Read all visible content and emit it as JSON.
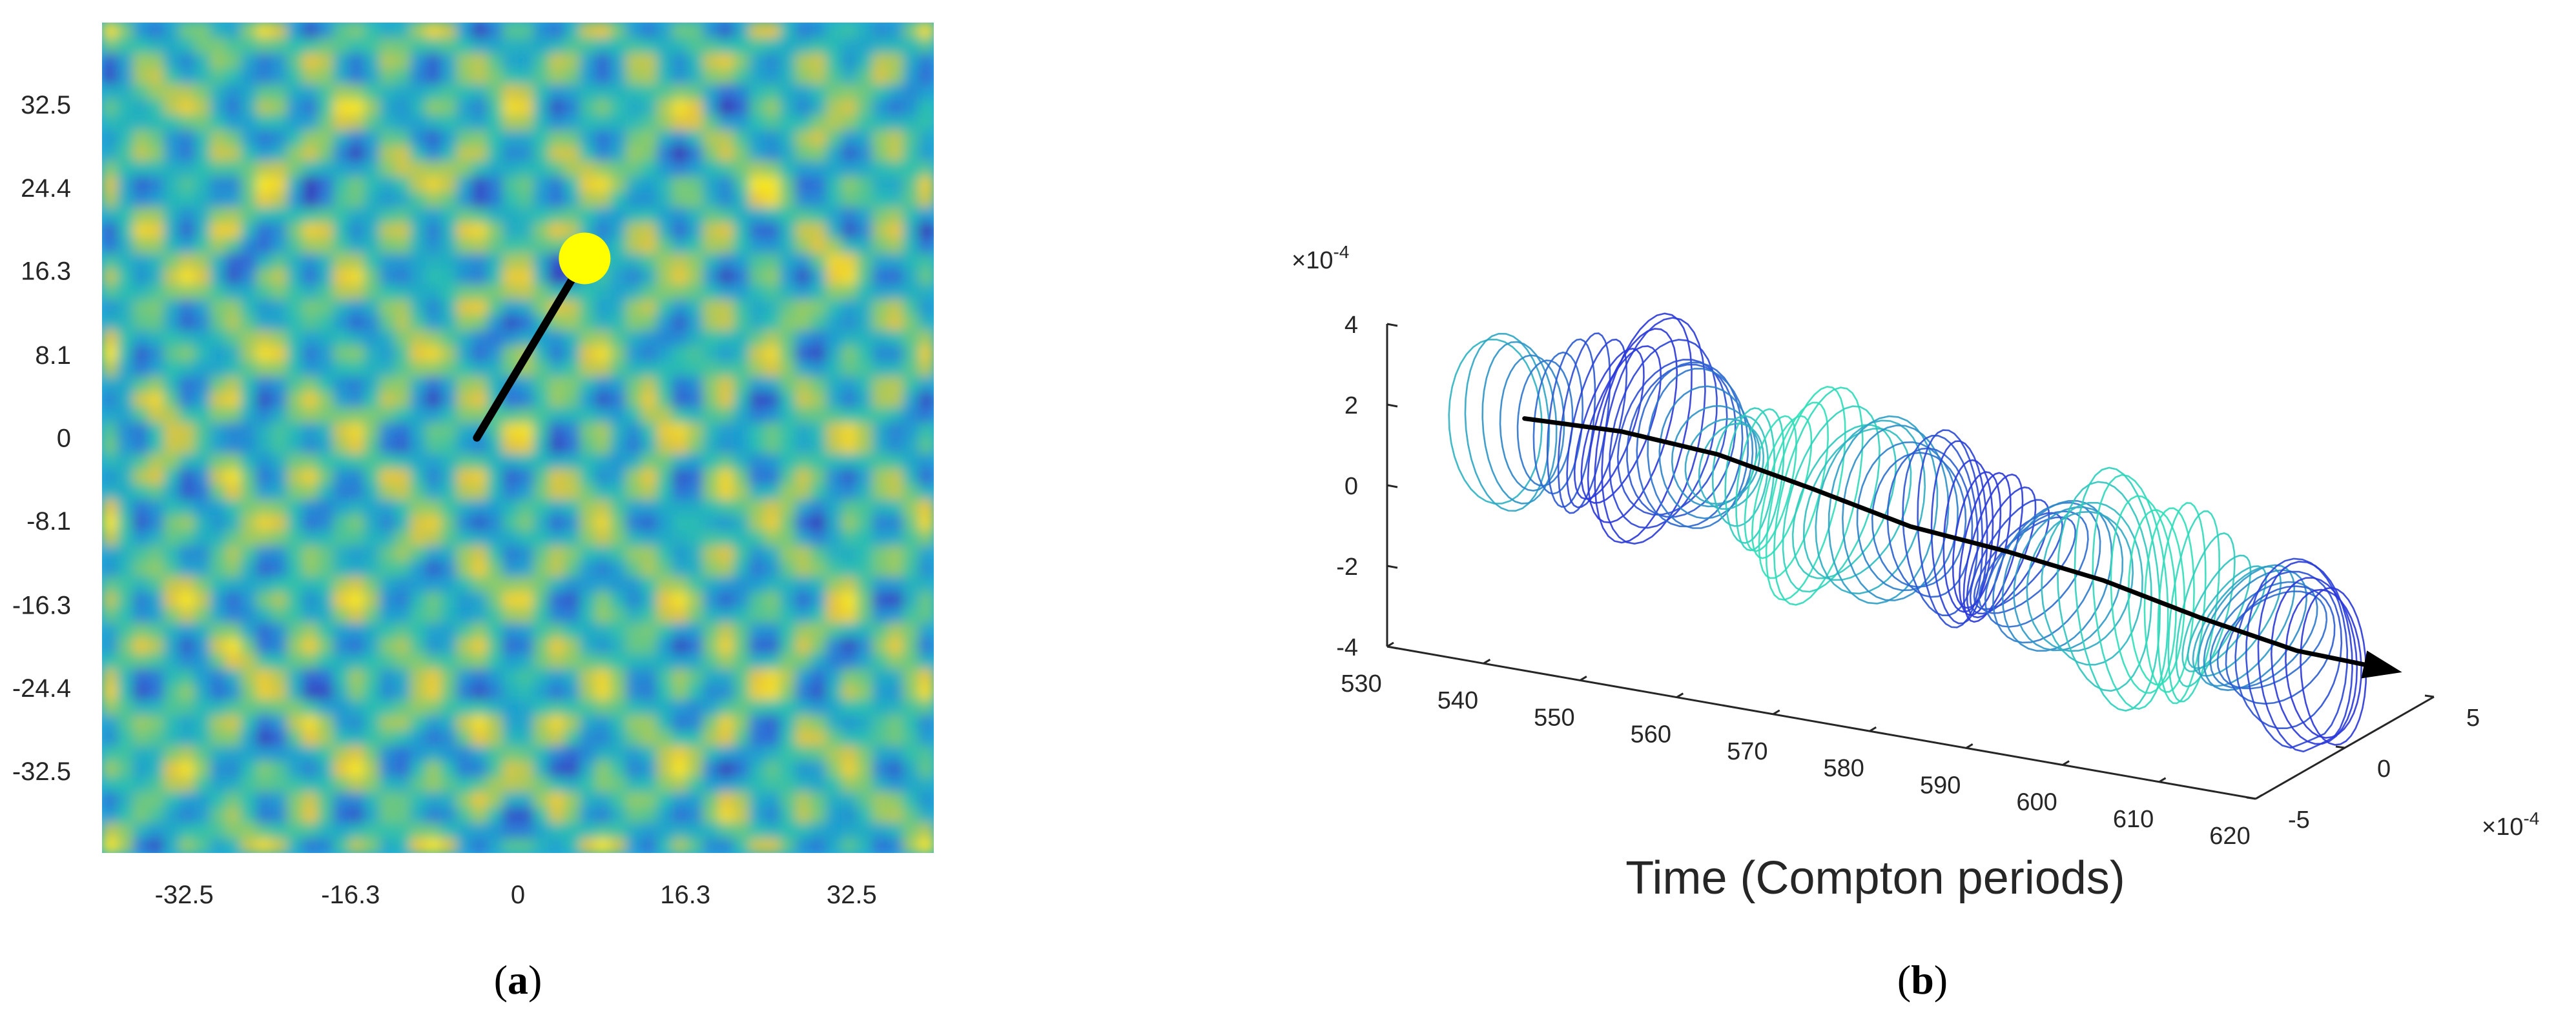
{
  "chart_data": [
    {
      "id": "a",
      "type": "heatmap",
      "description_label": "(a)",
      "panel_letter": "a",
      "x_ticks": [
        "-32.5",
        "-16.3",
        "0",
        "16.3",
        "32.5"
      ],
      "x_tick_values": [
        -32.5,
        -16.3,
        0,
        16.3,
        32.5
      ],
      "y_ticks": [
        "32.5",
        "24.4",
        "16.3",
        "8.1",
        "0",
        "-8.1",
        "-16.3",
        "-24.4",
        "-32.5"
      ],
      "y_tick_values": [
        32.5,
        24.4,
        16.3,
        8.1,
        0,
        -8.1,
        -16.3,
        -24.4,
        -32.5
      ],
      "xlim": [
        -40.5,
        40.5
      ],
      "ylim": [
        -40.5,
        40.5
      ],
      "colormap": [
        "#3a2bb5",
        "#2f6fd8",
        "#1f9fd0",
        "#2bbfb0",
        "#8ccb6a",
        "#e6c43c",
        "#f8e61e"
      ],
      "vector": {
        "start": [
          -4,
          0
        ],
        "end": [
          6.5,
          17.5
        ],
        "color": "#000000"
      },
      "highlight_point": {
        "x": 6.5,
        "y": 17.5,
        "color": "#ffff00"
      }
    },
    {
      "id": "b",
      "type": "line",
      "description_label": "(b)",
      "panel_letter": "b",
      "title": "",
      "xlabel": "Time (Compton periods)",
      "x_ticks": [
        "530",
        "540",
        "550",
        "560",
        "570",
        "580",
        "590",
        "600",
        "610",
        "620"
      ],
      "x_tick_values": [
        530,
        540,
        550,
        560,
        570,
        580,
        590,
        600,
        610,
        620
      ],
      "y_ticks": [
        "5",
        "0",
        "-5"
      ],
      "y_tick_values": [
        5,
        0,
        -5
      ],
      "y_exponent": "×10",
      "y_exponent_power": "-4",
      "z_ticks": [
        "4",
        "2",
        "0",
        "-2",
        "-4"
      ],
      "z_tick_values": [
        4,
        2,
        0,
        -2,
        -4
      ],
      "z_exponent": "×10",
      "z_exponent_power": "-4",
      "xlim": [
        530,
        620
      ],
      "ylim": [
        -5,
        5
      ],
      "zlim": [
        -4,
        4
      ],
      "series": [
        {
          "name": "trajectory loops",
          "color_start": "#2a36d9",
          "color_end": "#2fe0b8"
        },
        {
          "name": "mean path",
          "color": "#000000"
        }
      ],
      "mean_path": {
        "t": [
          535,
          545,
          555,
          565,
          575,
          585,
          595,
          605,
          615,
          622
        ],
        "z": [
          0.6,
          0.7,
          0.55,
          0.1,
          -0.4,
          -0.6,
          -0.9,
          -1.4,
          -1.8,
          -1.85
        ]
      }
    }
  ]
}
